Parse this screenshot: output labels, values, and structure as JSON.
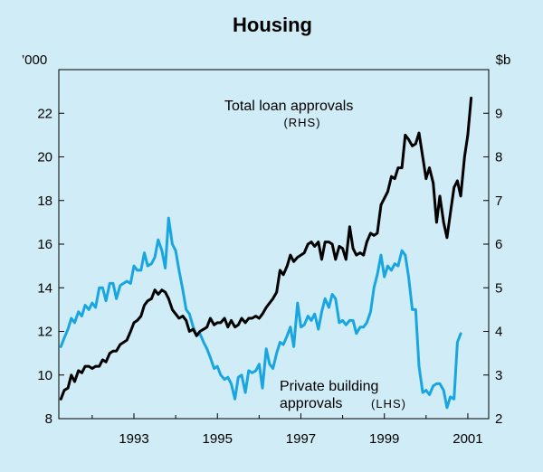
{
  "chart_data": {
    "type": "line",
    "title": "Housing",
    "left_axis": {
      "unit": "’000",
      "range": [
        8,
        24
      ],
      "ticks": [
        8,
        10,
        12,
        14,
        16,
        18,
        20,
        22
      ]
    },
    "right_axis": {
      "unit": "$b",
      "range": [
        2,
        10
      ],
      "ticks": [
        2,
        3,
        4,
        5,
        6,
        7,
        8,
        9
      ]
    },
    "x_axis": {
      "range": [
        1991.2,
        2001.5
      ],
      "ticks": [
        1993,
        1995,
        1997,
        1999,
        2001
      ],
      "tick_labels": [
        "1993",
        "1995",
        "1997",
        "1999",
        "2001"
      ],
      "minor_ticks": [
        1992,
        1994,
        1996,
        1998,
        2000
      ]
    },
    "grid": false,
    "series": [
      {
        "name": "Total loan approvals",
        "axis": "right",
        "color": "#000000",
        "label_line1": "Total loan approvals",
        "label_line2": "(RHS)",
        "points": [
          [
            1991.25,
            2.45
          ],
          [
            1991.33,
            2.65
          ],
          [
            1991.42,
            2.7
          ],
          [
            1991.5,
            3.0
          ],
          [
            1991.58,
            2.85
          ],
          [
            1991.67,
            3.1
          ],
          [
            1991.75,
            3.05
          ],
          [
            1991.83,
            3.2
          ],
          [
            1991.92,
            3.2
          ],
          [
            1992.0,
            3.15
          ],
          [
            1992.08,
            3.2
          ],
          [
            1992.17,
            3.2
          ],
          [
            1992.25,
            3.35
          ],
          [
            1992.33,
            3.3
          ],
          [
            1992.42,
            3.5
          ],
          [
            1992.5,
            3.55
          ],
          [
            1992.58,
            3.55
          ],
          [
            1992.67,
            3.7
          ],
          [
            1992.75,
            3.75
          ],
          [
            1992.83,
            3.8
          ],
          [
            1992.92,
            4.0
          ],
          [
            1993.0,
            4.2
          ],
          [
            1993.08,
            4.25
          ],
          [
            1993.17,
            4.35
          ],
          [
            1993.25,
            4.6
          ],
          [
            1993.33,
            4.7
          ],
          [
            1993.42,
            4.75
          ],
          [
            1993.5,
            4.95
          ],
          [
            1993.58,
            4.85
          ],
          [
            1993.67,
            4.95
          ],
          [
            1993.75,
            4.9
          ],
          [
            1993.83,
            4.75
          ],
          [
            1993.92,
            4.5
          ],
          [
            1994.0,
            4.4
          ],
          [
            1994.08,
            4.3
          ],
          [
            1994.17,
            4.35
          ],
          [
            1994.25,
            4.25
          ],
          [
            1994.33,
            4.0
          ],
          [
            1994.42,
            4.05
          ],
          [
            1994.5,
            3.9
          ],
          [
            1994.58,
            4.0
          ],
          [
            1994.67,
            4.05
          ],
          [
            1994.75,
            4.1
          ],
          [
            1994.83,
            4.3
          ],
          [
            1994.92,
            4.15
          ],
          [
            1995.0,
            4.2
          ],
          [
            1995.08,
            4.2
          ],
          [
            1995.17,
            4.3
          ],
          [
            1995.25,
            4.1
          ],
          [
            1995.33,
            4.25
          ],
          [
            1995.42,
            4.1
          ],
          [
            1995.5,
            4.15
          ],
          [
            1995.58,
            4.3
          ],
          [
            1995.67,
            4.2
          ],
          [
            1995.75,
            4.3
          ],
          [
            1995.83,
            4.3
          ],
          [
            1995.92,
            4.35
          ],
          [
            1996.0,
            4.3
          ],
          [
            1996.08,
            4.4
          ],
          [
            1996.17,
            4.55
          ],
          [
            1996.25,
            4.65
          ],
          [
            1996.33,
            4.75
          ],
          [
            1996.42,
            4.9
          ],
          [
            1996.5,
            5.4
          ],
          [
            1996.58,
            5.3
          ],
          [
            1996.67,
            5.5
          ],
          [
            1996.75,
            5.75
          ],
          [
            1996.83,
            5.6
          ],
          [
            1996.92,
            5.7
          ],
          [
            1997.0,
            5.75
          ],
          [
            1997.08,
            5.8
          ],
          [
            1997.17,
            6.0
          ],
          [
            1997.25,
            6.05
          ],
          [
            1997.33,
            5.95
          ],
          [
            1997.42,
            6.05
          ],
          [
            1997.5,
            5.65
          ],
          [
            1997.58,
            6.05
          ],
          [
            1997.67,
            6.05
          ],
          [
            1997.75,
            6.0
          ],
          [
            1997.83,
            5.65
          ],
          [
            1997.92,
            5.95
          ],
          [
            1998.0,
            5.9
          ],
          [
            1998.08,
            5.65
          ],
          [
            1998.17,
            6.4
          ],
          [
            1998.25,
            5.9
          ],
          [
            1998.33,
            5.75
          ],
          [
            1998.42,
            5.8
          ],
          [
            1998.5,
            5.75
          ],
          [
            1998.58,
            6.05
          ],
          [
            1998.67,
            6.25
          ],
          [
            1998.75,
            6.2
          ],
          [
            1998.83,
            6.25
          ],
          [
            1998.92,
            6.9
          ],
          [
            1999.0,
            7.05
          ],
          [
            1999.08,
            7.2
          ],
          [
            1999.17,
            7.55
          ],
          [
            1999.25,
            7.5
          ],
          [
            1999.33,
            7.75
          ],
          [
            1999.42,
            7.75
          ],
          [
            1999.5,
            8.5
          ],
          [
            1999.58,
            8.4
          ],
          [
            1999.67,
            8.25
          ],
          [
            1999.75,
            8.3
          ],
          [
            1999.83,
            8.55
          ],
          [
            1999.92,
            8.0
          ],
          [
            2000.0,
            7.5
          ],
          [
            2000.08,
            7.75
          ],
          [
            2000.17,
            7.4
          ],
          [
            2000.25,
            6.5
          ],
          [
            2000.33,
            7.1
          ],
          [
            2000.42,
            6.5
          ],
          [
            2000.5,
            6.15
          ],
          [
            2000.58,
            6.7
          ],
          [
            2000.67,
            7.3
          ],
          [
            2000.75,
            7.45
          ],
          [
            2000.83,
            7.1
          ],
          [
            2000.92,
            8.0
          ],
          [
            2001.0,
            8.5
          ],
          [
            2001.08,
            9.35
          ]
        ]
      },
      {
        "name": "Private building approvals",
        "axis": "left",
        "color": "#19a6e0",
        "label_line1": "Private building",
        "label_line2": "approvals",
        "label_line2_suffix": "(LHS)",
        "points": [
          [
            1991.25,
            11.3
          ],
          [
            1991.33,
            11.7
          ],
          [
            1991.42,
            12.1
          ],
          [
            1991.5,
            12.6
          ],
          [
            1991.58,
            12.4
          ],
          [
            1991.67,
            12.9
          ],
          [
            1991.75,
            12.7
          ],
          [
            1991.83,
            13.2
          ],
          [
            1991.92,
            13.0
          ],
          [
            1992.0,
            13.3
          ],
          [
            1992.08,
            13.1
          ],
          [
            1992.17,
            14.0
          ],
          [
            1992.25,
            14.0
          ],
          [
            1992.33,
            13.4
          ],
          [
            1992.42,
            14.2
          ],
          [
            1992.5,
            14.2
          ],
          [
            1992.58,
            13.5
          ],
          [
            1992.67,
            14.1
          ],
          [
            1992.75,
            14.2
          ],
          [
            1992.83,
            14.3
          ],
          [
            1992.92,
            14.2
          ],
          [
            1993.0,
            15.0
          ],
          [
            1993.08,
            14.8
          ],
          [
            1993.17,
            14.8
          ],
          [
            1993.25,
            15.6
          ],
          [
            1993.33,
            15.0
          ],
          [
            1993.42,
            15.1
          ],
          [
            1993.5,
            15.4
          ],
          [
            1993.58,
            16.2
          ],
          [
            1993.67,
            15.7
          ],
          [
            1993.75,
            14.9
          ],
          [
            1993.83,
            17.2
          ],
          [
            1993.92,
            16.0
          ],
          [
            1994.0,
            15.7
          ],
          [
            1994.08,
            14.8
          ],
          [
            1994.17,
            13.9
          ],
          [
            1994.25,
            13.0
          ],
          [
            1994.33,
            12.8
          ],
          [
            1994.42,
            12.2
          ],
          [
            1994.5,
            11.8
          ],
          [
            1994.58,
            11.9
          ],
          [
            1994.67,
            11.5
          ],
          [
            1994.75,
            11.2
          ],
          [
            1994.83,
            10.8
          ],
          [
            1994.92,
            10.3
          ],
          [
            1995.0,
            10.4
          ],
          [
            1995.08,
            10.0
          ],
          [
            1995.17,
            9.8
          ],
          [
            1995.25,
            9.9
          ],
          [
            1995.33,
            9.6
          ],
          [
            1995.42,
            8.9
          ],
          [
            1995.5,
            9.9
          ],
          [
            1995.58,
            10.0
          ],
          [
            1995.67,
            9.2
          ],
          [
            1995.75,
            10.2
          ],
          [
            1995.83,
            10.1
          ],
          [
            1995.92,
            10.2
          ],
          [
            1996.0,
            10.5
          ],
          [
            1996.08,
            9.4
          ],
          [
            1996.17,
            11.2
          ],
          [
            1996.25,
            10.5
          ],
          [
            1996.33,
            10.3
          ],
          [
            1996.42,
            11.0
          ],
          [
            1996.5,
            11.5
          ],
          [
            1996.58,
            11.4
          ],
          [
            1996.67,
            11.8
          ],
          [
            1996.75,
            12.2
          ],
          [
            1996.83,
            11.3
          ],
          [
            1996.92,
            13.3
          ],
          [
            1997.0,
            12.2
          ],
          [
            1997.08,
            12.3
          ],
          [
            1997.17,
            12.7
          ],
          [
            1997.25,
            12.5
          ],
          [
            1997.33,
            12.8
          ],
          [
            1997.42,
            12.1
          ],
          [
            1997.5,
            12.9
          ],
          [
            1997.58,
            13.5
          ],
          [
            1997.67,
            13.1
          ],
          [
            1997.75,
            13.7
          ],
          [
            1997.83,
            13.5
          ],
          [
            1997.92,
            12.4
          ],
          [
            1998.0,
            12.5
          ],
          [
            1998.08,
            12.3
          ],
          [
            1998.17,
            12.5
          ],
          [
            1998.25,
            12.5
          ],
          [
            1998.33,
            11.9
          ],
          [
            1998.42,
            12.2
          ],
          [
            1998.5,
            12.2
          ],
          [
            1998.58,
            12.4
          ],
          [
            1998.67,
            12.9
          ],
          [
            1998.75,
            14.0
          ],
          [
            1998.83,
            14.6
          ],
          [
            1998.92,
            15.5
          ],
          [
            1999.0,
            14.5
          ],
          [
            1999.08,
            15.0
          ],
          [
            1999.17,
            14.8
          ],
          [
            1999.25,
            15.1
          ],
          [
            1999.33,
            15.0
          ],
          [
            1999.42,
            15.7
          ],
          [
            1999.5,
            15.5
          ],
          [
            1999.58,
            14.5
          ],
          [
            1999.67,
            13.0
          ],
          [
            1999.75,
            13.0
          ],
          [
            1999.83,
            10.4
          ],
          [
            1999.92,
            9.2
          ],
          [
            2000.0,
            9.3
          ],
          [
            2000.08,
            9.1
          ],
          [
            2000.17,
            9.5
          ],
          [
            2000.25,
            9.6
          ],
          [
            2000.33,
            9.6
          ],
          [
            2000.42,
            9.3
          ],
          [
            2000.5,
            8.5
          ],
          [
            2000.58,
            9.0
          ],
          [
            2000.67,
            8.9
          ],
          [
            2000.75,
            11.5
          ],
          [
            2000.83,
            11.9
          ]
        ]
      }
    ]
  }
}
